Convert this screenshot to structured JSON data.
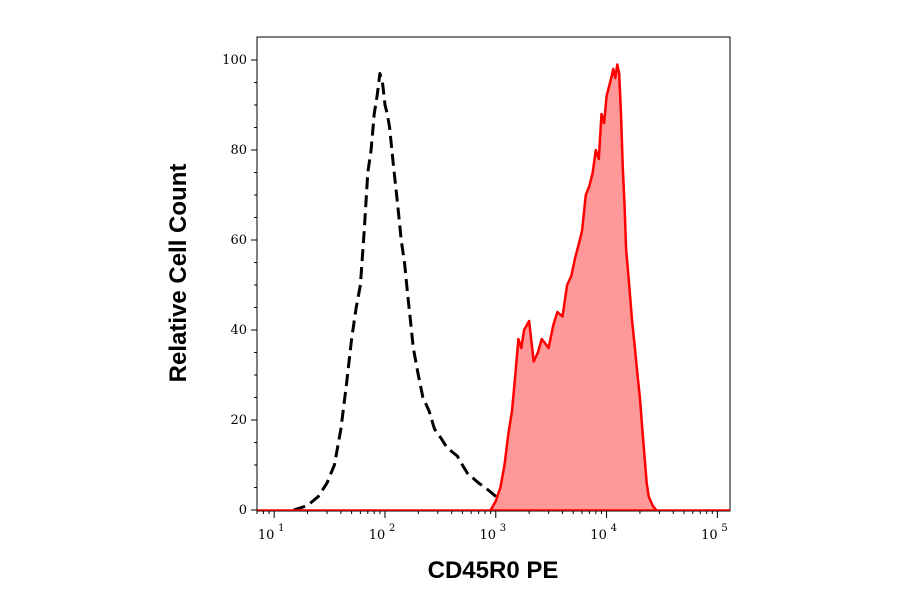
{
  "chart_data": {
    "type": "area",
    "title": "",
    "xlabel": "CD45R0 PE",
    "ylabel": "Relative Cell Count",
    "x_scale": "log",
    "xlim": [
      7,
      130000
    ],
    "ylim": [
      0,
      100
    ],
    "grid": false,
    "x_ticks": [
      {
        "base": "10",
        "exp": "1",
        "value": 10
      },
      {
        "base": "10",
        "exp": "2",
        "value": 100
      },
      {
        "base": "10",
        "exp": "3",
        "value": 1000
      },
      {
        "base": "10",
        "exp": "4",
        "value": 10000
      },
      {
        "base": "10",
        "exp": "5",
        "value": 100000
      }
    ],
    "y_ticks": [
      0,
      20,
      40,
      60,
      80,
      100
    ],
    "series": [
      {
        "style": "dashed-outline",
        "color": "#000000",
        "x": [
          15,
          20,
          25,
          30,
          35,
          40,
          45,
          50,
          55,
          60,
          65,
          70,
          75,
          80,
          85,
          90,
          95,
          100,
          105,
          110,
          120,
          130,
          140,
          150,
          160,
          170,
          180,
          200,
          220,
          250,
          280,
          320,
          360,
          400,
          450,
          500,
          560,
          630,
          700,
          800,
          900,
          1000,
          1100,
          1200,
          1300
        ],
        "values": [
          0,
          1,
          3,
          6,
          10,
          18,
          28,
          38,
          45,
          50,
          62,
          75,
          80,
          88,
          92,
          97,
          95,
          90,
          88,
          85,
          76,
          68,
          60,
          55,
          48,
          42,
          36,
          30,
          25,
          22,
          18,
          16,
          14,
          13,
          12,
          10,
          8,
          7,
          6,
          5,
          4,
          3,
          2,
          1,
          0
        ]
      },
      {
        "style": "filled",
        "color": "#ff0000",
        "fill": "#ff9999",
        "x": [
          900,
          1000,
          1100,
          1200,
          1300,
          1400,
          1500,
          1600,
          1700,
          1800,
          2000,
          2200,
          2400,
          2600,
          2800,
          3000,
          3300,
          3600,
          4000,
          4400,
          4800,
          5200,
          5600,
          6000,
          6500,
          7000,
          7500,
          8000,
          8500,
          9000,
          9500,
          10000,
          10500,
          11000,
          11500,
          12000,
          12500,
          13000,
          13500,
          14000,
          14500,
          15000,
          16000,
          17000,
          18000,
          19000,
          20000,
          21000,
          22000,
          23000,
          24000,
          26000,
          28000
        ],
        "values": [
          0,
          2,
          5,
          10,
          17,
          22,
          30,
          38,
          36,
          40,
          42,
          33,
          35,
          38,
          37,
          36,
          41,
          44,
          43,
          50,
          52,
          56,
          59,
          62,
          70,
          72,
          75,
          80,
          78,
          88,
          86,
          92,
          94,
          96,
          98,
          96,
          99,
          97,
          88,
          76,
          68,
          58,
          50,
          42,
          36,
          30,
          25,
          18,
          12,
          6,
          3,
          1,
          0
        ]
      }
    ]
  }
}
